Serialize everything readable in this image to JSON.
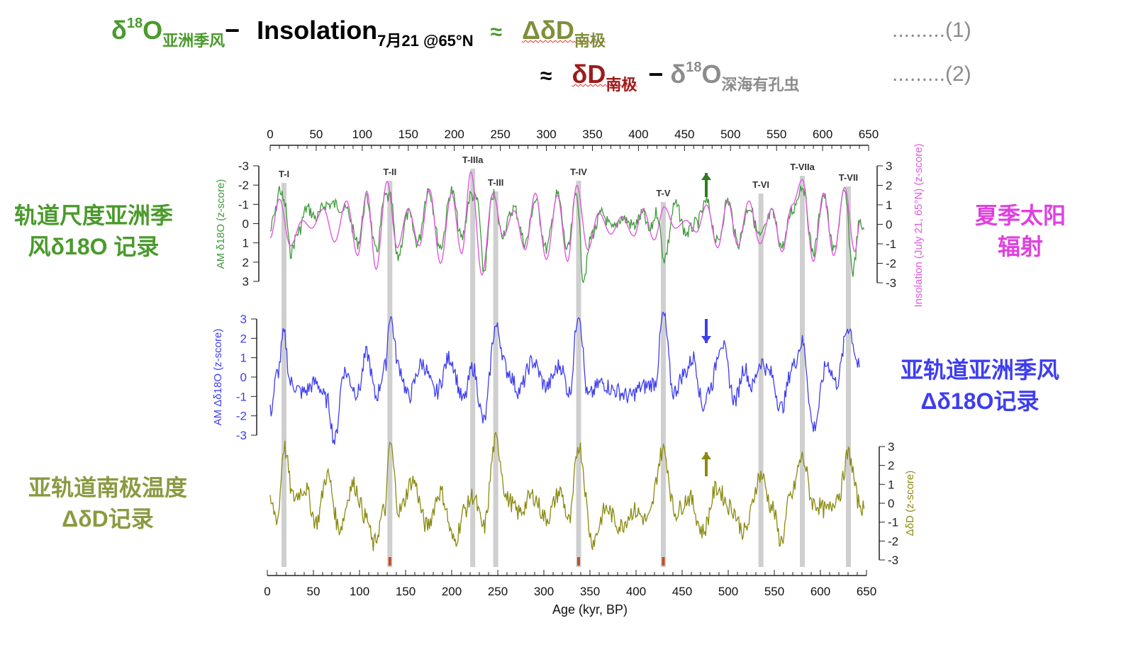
{
  "equations": {
    "eq1": {
      "d18o": "δ",
      "sup": "18",
      "o": "O",
      "sub_monsoon": "亚洲季风",
      "minus": "−",
      "insolation": "Insolation",
      "sub_insol": "7月21 @65°N",
      "approx": "≈",
      "ddd": "ΔδD",
      "sub_antarctic": "南极",
      "ref": ".........(1)"
    },
    "eq2": {
      "approx": "≈",
      "dd": "δD",
      "sub_antarctic": "南极",
      "minus": "−",
      "d18o": "δ",
      "sup": "18",
      "o": "O",
      "sub_foram": "深海有孔虫",
      "ref": ".........(2)"
    }
  },
  "side_labels": {
    "left1": [
      "轨道尺度亚洲季",
      "风δ18O 记录"
    ],
    "right1": [
      "夏季太阳",
      "辐射"
    ],
    "right2": [
      "亚轨道亚洲季风",
      "Δδ18O记录"
    ],
    "left3": [
      "亚轨道南极温度",
      "ΔδD记录"
    ]
  },
  "chart_data": {
    "type": "line",
    "x_axis": {
      "label": "Age (kyr, BP)",
      "range": [
        0,
        650
      ],
      "ticks": [
        0,
        50,
        100,
        150,
        200,
        250,
        300,
        350,
        400,
        450,
        500,
        550,
        600,
        650
      ]
    },
    "terminations": [
      {
        "label": "T-I",
        "age": 15
      },
      {
        "label": "T-II",
        "age": 130
      },
      {
        "label": "T-IIIa",
        "age": 220
      },
      {
        "label": "T-III",
        "age": 245
      },
      {
        "label": "T-IV",
        "age": 335
      },
      {
        "label": "T-V",
        "age": 427
      },
      {
        "label": "T-VI",
        "age": 533
      },
      {
        "label": "T-VIIa",
        "age": 578
      },
      {
        "label": "T-VII",
        "age": 628
      }
    ],
    "panels": [
      {
        "name": "AM δ18O",
        "ylabel": "AM δ18O (z-score)",
        "yticks": [
          -3,
          -2,
          -1,
          0,
          1,
          2,
          3
        ],
        "inverted": true,
        "color": "#3f9a3a",
        "points": [
          [
            0,
            0.4
          ],
          [
            5,
            -0.5
          ],
          [
            10,
            -1.8
          ],
          [
            16,
            -1.0
          ],
          [
            22,
            1.5
          ],
          [
            30,
            0.5
          ],
          [
            40,
            -0.8
          ],
          [
            50,
            -0.3
          ],
          [
            60,
            -1.0
          ],
          [
            70,
            -1.0
          ],
          [
            83,
            -0.7
          ],
          [
            95,
            1.0
          ],
          [
            105,
            -1.3
          ],
          [
            115,
            1.5
          ],
          [
            125,
            -1.4
          ],
          [
            131,
            -1.3
          ],
          [
            138,
            1.8
          ],
          [
            150,
            -0.5
          ],
          [
            160,
            1.0
          ],
          [
            172,
            -1.8
          ],
          [
            185,
            1.2
          ],
          [
            197,
            -1.7
          ],
          [
            208,
            0.8
          ],
          [
            218,
            -1.5
          ],
          [
            225,
            -1.2
          ],
          [
            232,
            2.5
          ],
          [
            242,
            -1.5
          ],
          [
            252,
            0.5
          ],
          [
            265,
            -0.8
          ],
          [
            277,
            1.0
          ],
          [
            288,
            -1.2
          ],
          [
            300,
            1.3
          ],
          [
            312,
            -1.5
          ],
          [
            323,
            1.4
          ],
          [
            333,
            -1.6
          ],
          [
            340,
            2.8
          ],
          [
            350,
            0.5
          ],
          [
            360,
            -0.5
          ],
          [
            372,
            0.3
          ],
          [
            382,
            -0.3
          ],
          [
            395,
            0.1
          ],
          [
            405,
            -0.5
          ],
          [
            412,
            0.4
          ],
          [
            420,
            -0.6
          ],
          [
            428,
            1.8
          ],
          [
            440,
            -1.0
          ],
          [
            452,
            0.5
          ],
          [
            463,
            0.0
          ],
          [
            474,
            -1.1
          ],
          [
            486,
            1.0
          ],
          [
            497,
            -1.2
          ],
          [
            508,
            1.0
          ],
          [
            520,
            -0.9
          ],
          [
            532,
            0.7
          ],
          [
            545,
            -0.5
          ],
          [
            556,
            1.2
          ],
          [
            567,
            -0.7
          ],
          [
            578,
            -2.0
          ],
          [
            590,
            1.5
          ],
          [
            601,
            -1.5
          ],
          [
            612,
            1.4
          ],
          [
            624,
            -1.6
          ],
          [
            633,
            2.5
          ],
          [
            640,
            0.0
          ],
          [
            645,
            0.3
          ]
        ]
      },
      {
        "name": "Insolation",
        "ylabel": "Insolation (July 21, 65°N) (z-score)",
        "yticks": [
          3,
          2,
          1,
          0,
          -1,
          -2,
          -3
        ],
        "color": "#e05ae0",
        "points": [
          [
            0,
            -0.7
          ],
          [
            10,
            1.3
          ],
          [
            22,
            -1.1
          ],
          [
            35,
            0.2
          ],
          [
            45,
            -0.2
          ],
          [
            58,
            0.8
          ],
          [
            70,
            -0.9
          ],
          [
            83,
            1.2
          ],
          [
            95,
            -1.6
          ],
          [
            105,
            1.7
          ],
          [
            115,
            -2.3
          ],
          [
            127,
            2.2
          ],
          [
            138,
            -1.2
          ],
          [
            150,
            0.8
          ],
          [
            162,
            -1.1
          ],
          [
            173,
            1.8
          ],
          [
            185,
            -2.0
          ],
          [
            197,
            1.6
          ],
          [
            208,
            -1.5
          ],
          [
            218,
            2.7
          ],
          [
            230,
            -2.6
          ],
          [
            242,
            1.6
          ],
          [
            253,
            -0.6
          ],
          [
            265,
            0.7
          ],
          [
            277,
            -1.3
          ],
          [
            288,
            1.6
          ],
          [
            300,
            -1.8
          ],
          [
            312,
            1.5
          ],
          [
            323,
            -1.9
          ],
          [
            333,
            2.0
          ],
          [
            345,
            -1.3
          ],
          [
            357,
            0.6
          ],
          [
            370,
            -0.5
          ],
          [
            382,
            0.4
          ],
          [
            395,
            -0.6
          ],
          [
            405,
            0.8
          ],
          [
            417,
            -0.8
          ],
          [
            428,
            0.9
          ],
          [
            440,
            -0.2
          ],
          [
            452,
            0.2
          ],
          [
            463,
            -0.4
          ],
          [
            474,
            1.0
          ],
          [
            486,
            -1.2
          ],
          [
            497,
            1.2
          ],
          [
            508,
            -1.1
          ],
          [
            520,
            1.2
          ],
          [
            532,
            -1.0
          ],
          [
            545,
            0.8
          ],
          [
            556,
            -1.4
          ],
          [
            567,
            1.0
          ],
          [
            578,
            2.3
          ],
          [
            590,
            -1.9
          ],
          [
            601,
            1.6
          ],
          [
            612,
            -1.6
          ],
          [
            624,
            1.9
          ],
          [
            635,
            -1.4
          ],
          [
            641,
            0.2
          ]
        ]
      },
      {
        "name": "AM Δδ18O",
        "ylabel": "AM Δδ18O (z-score)",
        "yticks": [
          3,
          2,
          1,
          0,
          -1,
          -2,
          -3
        ],
        "color": "#3d3df0",
        "points": [
          [
            0,
            -1.8
          ],
          [
            8,
            0.2
          ],
          [
            15,
            2.2
          ],
          [
            22,
            -0.3
          ],
          [
            35,
            -0.8
          ],
          [
            50,
            -0.3
          ],
          [
            62,
            -1.2
          ],
          [
            70,
            -3.3
          ],
          [
            80,
            0.3
          ],
          [
            95,
            -0.8
          ],
          [
            105,
            1.2
          ],
          [
            115,
            -1.0
          ],
          [
            125,
            0.5
          ],
          [
            130,
            3.2
          ],
          [
            140,
            0.5
          ],
          [
            150,
            -1.0
          ],
          [
            165,
            0.7
          ],
          [
            180,
            -0.8
          ],
          [
            195,
            1.0
          ],
          [
            210,
            -1.2
          ],
          [
            220,
            0.5
          ],
          [
            232,
            -2.3
          ],
          [
            245,
            2.6
          ],
          [
            258,
            0.3
          ],
          [
            270,
            -0.7
          ],
          [
            285,
            0.8
          ],
          [
            300,
            -0.5
          ],
          [
            315,
            0.6
          ],
          [
            325,
            -0.8
          ],
          [
            335,
            3.4
          ],
          [
            345,
            -1.0
          ],
          [
            360,
            -0.3
          ],
          [
            375,
            -0.7
          ],
          [
            390,
            -1.0
          ],
          [
            405,
            -0.5
          ],
          [
            418,
            -0.3
          ],
          [
            427,
            3.2
          ],
          [
            438,
            -0.8
          ],
          [
            450,
            0.2
          ],
          [
            460,
            1.0
          ],
          [
            470,
            -1.5
          ],
          [
            478,
            -0.5
          ],
          [
            490,
            1.8
          ],
          [
            505,
            -1.2
          ],
          [
            515,
            0.5
          ],
          [
            523,
            -0.5
          ],
          [
            533,
            0.8
          ],
          [
            543,
            0.2
          ],
          [
            555,
            -1.6
          ],
          [
            568,
            0.6
          ],
          [
            578,
            1.8
          ],
          [
            590,
            -2.6
          ],
          [
            605,
            0.7
          ],
          [
            615,
            -0.3
          ],
          [
            628,
            2.6
          ],
          [
            640,
            0.5
          ]
        ]
      },
      {
        "name": "ΔδD",
        "ylabel": "ΔδD (z-score)",
        "yticks": [
          3,
          2,
          1,
          0,
          -1,
          -2,
          -3
        ],
        "color": "#8a8a10",
        "points": [
          [
            0,
            0.0
          ],
          [
            8,
            -0.8
          ],
          [
            15,
            3.0
          ],
          [
            25,
            0.3
          ],
          [
            38,
            0.8
          ],
          [
            50,
            -1.0
          ],
          [
            62,
            1.5
          ],
          [
            75,
            -1.3
          ],
          [
            90,
            1.0
          ],
          [
            105,
            -0.8
          ],
          [
            112,
            -2.2
          ],
          [
            125,
            -0.3
          ],
          [
            130,
            3.2
          ],
          [
            140,
            -0.4
          ],
          [
            155,
            1.2
          ],
          [
            170,
            -1.2
          ],
          [
            185,
            0.6
          ],
          [
            200,
            -2.0
          ],
          [
            212,
            -0.3
          ],
          [
            220,
            0.4
          ],
          [
            232,
            -1.3
          ],
          [
            245,
            3.3
          ],
          [
            258,
            0.2
          ],
          [
            270,
            -0.5
          ],
          [
            285,
            0.4
          ],
          [
            300,
            -0.8
          ],
          [
            315,
            0.6
          ],
          [
            325,
            -1.0
          ],
          [
            335,
            3.1
          ],
          [
            350,
            -2.0
          ],
          [
            365,
            -0.3
          ],
          [
            380,
            -1.2
          ],
          [
            395,
            -0.4
          ],
          [
            410,
            -0.9
          ],
          [
            427,
            2.8
          ],
          [
            440,
            -0.5
          ],
          [
            455,
            0.3
          ],
          [
            470,
            -1.5
          ],
          [
            485,
            0.8
          ],
          [
            500,
            -0.2
          ],
          [
            515,
            -1.5
          ],
          [
            533,
            1.5
          ],
          [
            545,
            -0.2
          ],
          [
            555,
            -2.0
          ],
          [
            565,
            0.3
          ],
          [
            578,
            2.4
          ],
          [
            590,
            0.0
          ],
          [
            605,
            -0.4
          ],
          [
            618,
            0.5
          ],
          [
            628,
            2.6
          ],
          [
            640,
            0.0
          ],
          [
            645,
            -0.3
          ]
        ]
      }
    ]
  }
}
